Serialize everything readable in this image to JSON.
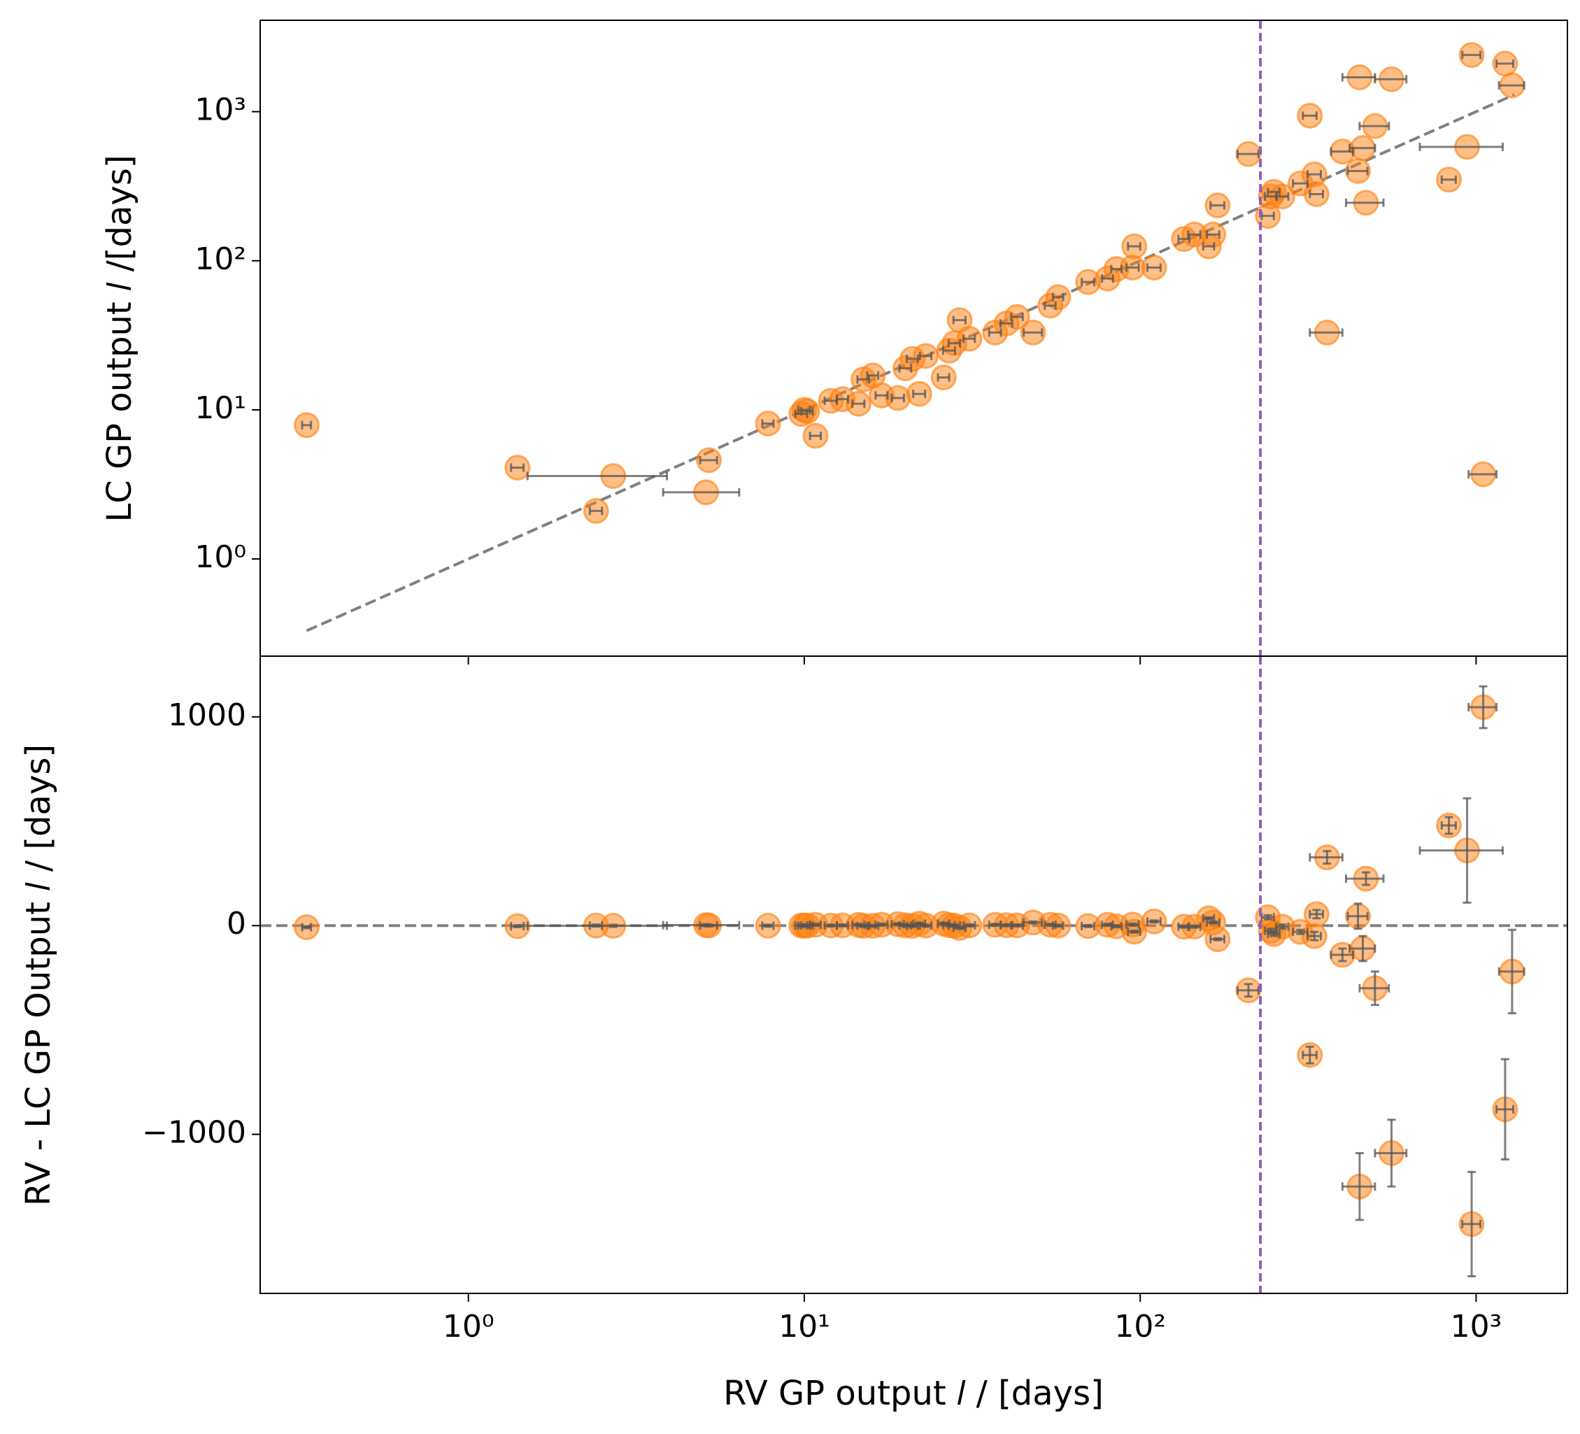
{
  "chart_data": [
    {
      "type": "scatter",
      "ylabel": "LC GP output 𝑙 /[days]",
      "xlabel": "RV GP output 𝑙 / [days]",
      "xscale": "log",
      "yscale": "log",
      "color": "#ff7f0e",
      "errcolor": "#555555",
      "xlim": [
        0.24,
        1870
      ],
      "ylim": [
        0.223,
        4100
      ],
      "xticks": [
        {
          "value": 1,
          "label": "10⁰"
        },
        {
          "value": 10,
          "label": "10¹"
        },
        {
          "value": 100,
          "label": "10²"
        },
        {
          "value": 1000,
          "label": "10³"
        }
      ],
      "yticks": [
        {
          "value": 1,
          "label": "10⁰"
        },
        {
          "value": 10,
          "label": "10¹"
        },
        {
          "value": 100,
          "label": "10²"
        },
        {
          "value": 1000,
          "label": "10³"
        }
      ],
      "x": [
        0.33,
        1.4,
        2.4,
        2.7,
        5.1,
        5.2,
        7.8,
        9.8,
        10,
        10.2,
        10.8,
        12,
        13,
        14.5,
        15,
        16,
        17,
        19,
        20,
        21,
        22,
        23,
        26,
        27,
        28,
        29,
        31,
        37,
        40,
        43,
        48,
        54,
        57,
        70,
        80,
        85,
        95,
        96,
        110,
        135,
        145,
        160,
        165,
        170,
        210,
        240,
        245,
        250,
        265,
        300,
        320,
        330,
        335,
        360,
        400,
        445,
        450,
        460,
        470,
        500,
        560,
        830,
        940,
        970,
        1050,
        1220,
        1280
      ],
      "xerr": [
        0.01,
        0.06,
        0.1,
        1.2,
        1.3,
        0.3,
        0.3,
        0.4,
        0.4,
        0.4,
        0.4,
        0.5,
        0.5,
        0.6,
        0.6,
        0.6,
        0.7,
        0.8,
        0.8,
        0.8,
        0.9,
        0.9,
        1,
        1.1,
        1.1,
        1.2,
        1.2,
        1.5,
        1.6,
        1.7,
        3,
        2,
        2,
        3,
        3,
        3,
        4,
        4,
        5,
        5,
        6,
        6,
        7,
        8,
        15,
        10,
        10,
        10,
        11,
        15,
        15,
        15,
        15,
        40,
        30,
        30,
        50,
        40,
        60,
        50,
        60,
        40,
        260,
        60,
        100,
        70,
        110
      ],
      "y": [
        7.9,
        4.1,
        2.1,
        3.6,
        2.8,
        4.6,
        8.1,
        9.4,
        10,
        9.8,
        6.7,
        11.5,
        11.8,
        11,
        16,
        17,
        12.5,
        12,
        19,
        22,
        12.8,
        23,
        16.5,
        25,
        28,
        40,
        30,
        33,
        38,
        42,
        33,
        50,
        57,
        72,
        76,
        88,
        90,
        125,
        90,
        140,
        150,
        125,
        150,
        235,
        520,
        200,
        270,
        290,
        270,
        330,
        940,
        380,
        280,
        33,
        540,
        400,
        1700,
        570,
        245,
        800,
        1650,
        350,
        580,
        2400,
        3.7,
        2100,
        1500
      ],
      "identity_line": {
        "x": [
          0.33,
          1300
        ],
        "y": [
          0.33,
          1300
        ],
        "color": "#808080"
      },
      "vline": {
        "x": 228,
        "color": "#8c5fbf"
      }
    },
    {
      "type": "scatter",
      "ylabel": "RV - LC GP Output 𝑙 / [days]",
      "xscale": "log",
      "yscale": "linear",
      "color": "#ff7f0e",
      "errcolor": "#555555",
      "xlim": [
        0.24,
        1870
      ],
      "ylim": [
        -1762,
        1291
      ],
      "yticks": [
        {
          "value": -1000,
          "label": "−1000"
        },
        0,
        1000
      ],
      "x": [
        0.33,
        1.4,
        2.4,
        2.7,
        5.1,
        5.2,
        7.8,
        9.8,
        10,
        10.2,
        10.8,
        12,
        13,
        14.5,
        15,
        16,
        17,
        19,
        20,
        21,
        22,
        23,
        26,
        27,
        28,
        29,
        31,
        37,
        40,
        43,
        48,
        54,
        57,
        70,
        80,
        85,
        95,
        96,
        110,
        135,
        145,
        160,
        165,
        170,
        210,
        240,
        245,
        250,
        265,
        300,
        320,
        330,
        335,
        360,
        400,
        445,
        450,
        460,
        470,
        500,
        560,
        830,
        940,
        970,
        1050,
        1220,
        1280
      ],
      "xerr": [
        0.01,
        0.06,
        0.1,
        1.2,
        1.3,
        0.3,
        0.3,
        0.4,
        0.4,
        0.4,
        0.4,
        0.5,
        0.5,
        0.6,
        0.6,
        0.6,
        0.7,
        0.8,
        0.8,
        0.8,
        0.9,
        0.9,
        1,
        1.1,
        1.1,
        1.2,
        1.2,
        1.5,
        1.6,
        1.7,
        3,
        2,
        2,
        3,
        3,
        3,
        4,
        4,
        5,
        5,
        6,
        6,
        7,
        8,
        15,
        10,
        10,
        10,
        11,
        15,
        15,
        15,
        15,
        40,
        30,
        30,
        50,
        40,
        60,
        50,
        60,
        40,
        260,
        60,
        100,
        70,
        110
      ],
      "y": [
        -7.57,
        -2.7,
        0.3,
        -0.9,
        2.3,
        0.6,
        -0.3,
        0.4,
        0,
        0.4,
        4.1,
        0.5,
        1.2,
        3.5,
        -1,
        -1,
        4.5,
        7,
        1,
        -1,
        9.2,
        0,
        9.5,
        2,
        0,
        -11,
        1,
        4,
        2,
        1,
        15,
        4,
        0,
        -2,
        4,
        -3,
        5,
        -29,
        20,
        -5,
        -5,
        35,
        15,
        -65,
        -310,
        40,
        -25,
        -40,
        -5,
        -30,
        -620,
        -50,
        55,
        327,
        -140,
        45,
        -1250,
        -110,
        225,
        -300,
        -1090,
        480,
        360,
        -1430,
        1046.3,
        -880,
        -220
      ],
      "yerr": [
        5,
        5,
        5,
        5,
        5,
        5,
        5,
        5,
        5,
        5,
        5,
        5,
        5,
        5,
        5,
        5,
        5,
        5,
        5,
        5,
        5,
        5,
        5,
        5,
        5,
        5,
        5,
        5,
        5,
        5,
        5,
        5,
        5,
        5,
        5,
        5,
        5,
        5,
        5,
        5,
        5,
        5,
        5,
        5,
        30,
        10,
        10,
        10,
        10,
        10,
        40,
        20,
        20,
        30,
        30,
        60,
        160,
        60,
        30,
        80,
        160,
        40,
        250,
        250,
        100,
        240,
        200
      ],
      "hline": {
        "y": 0,
        "color": "#808080"
      },
      "vline": {
        "x": 228,
        "color": "#8c5fbf"
      }
    }
  ]
}
